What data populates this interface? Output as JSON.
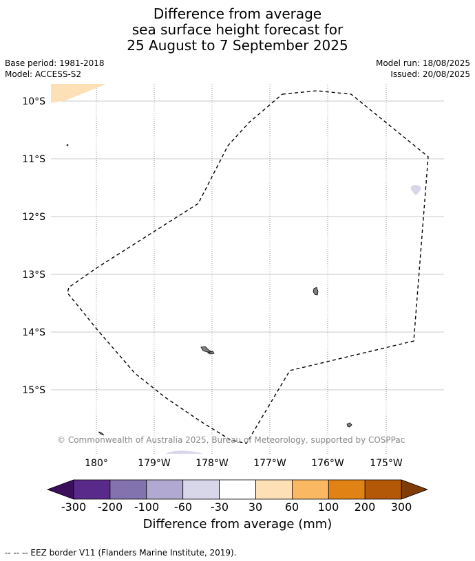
{
  "title": {
    "line1": "Difference from average",
    "line2": "sea surface height forecast for",
    "line3": "25 August to 7 September 2025"
  },
  "meta": {
    "base_period": "Base period: 1981-2018",
    "model": "Model: ACCESS-S2",
    "model_run": "Model run: 18/08/2025",
    "issued": "Issued: 20/08/2025"
  },
  "map": {
    "lat_labels": [
      "10°S",
      "11°S",
      "12°S",
      "13°S",
      "14°S",
      "15°S"
    ],
    "lon_labels": [
      "180°",
      "179°W",
      "178°W",
      "177°W",
      "176°W",
      "175°W"
    ],
    "copyright": "© Commonwealth of Australia 2025, Bureau of Meteorology, supported by COSPPac"
  },
  "colorbar": {
    "title": "Difference from average (mm)",
    "tick_labels": [
      "-300",
      "-200",
      "-100",
      "-60",
      "-30",
      "30",
      "60",
      "100",
      "200",
      "300"
    ],
    "colors": [
      "#3b0f5c",
      "#5a2a8a",
      "#8272ae",
      "#b1a9d1",
      "#d8d7e9",
      "#ffffff",
      "#fee0b6",
      "#fbb863",
      "#e08214",
      "#b35806",
      "#7f3b08"
    ]
  },
  "footer": "--  --  -- EEZ border V11 (Flanders Marine Institute, 2019)."
}
